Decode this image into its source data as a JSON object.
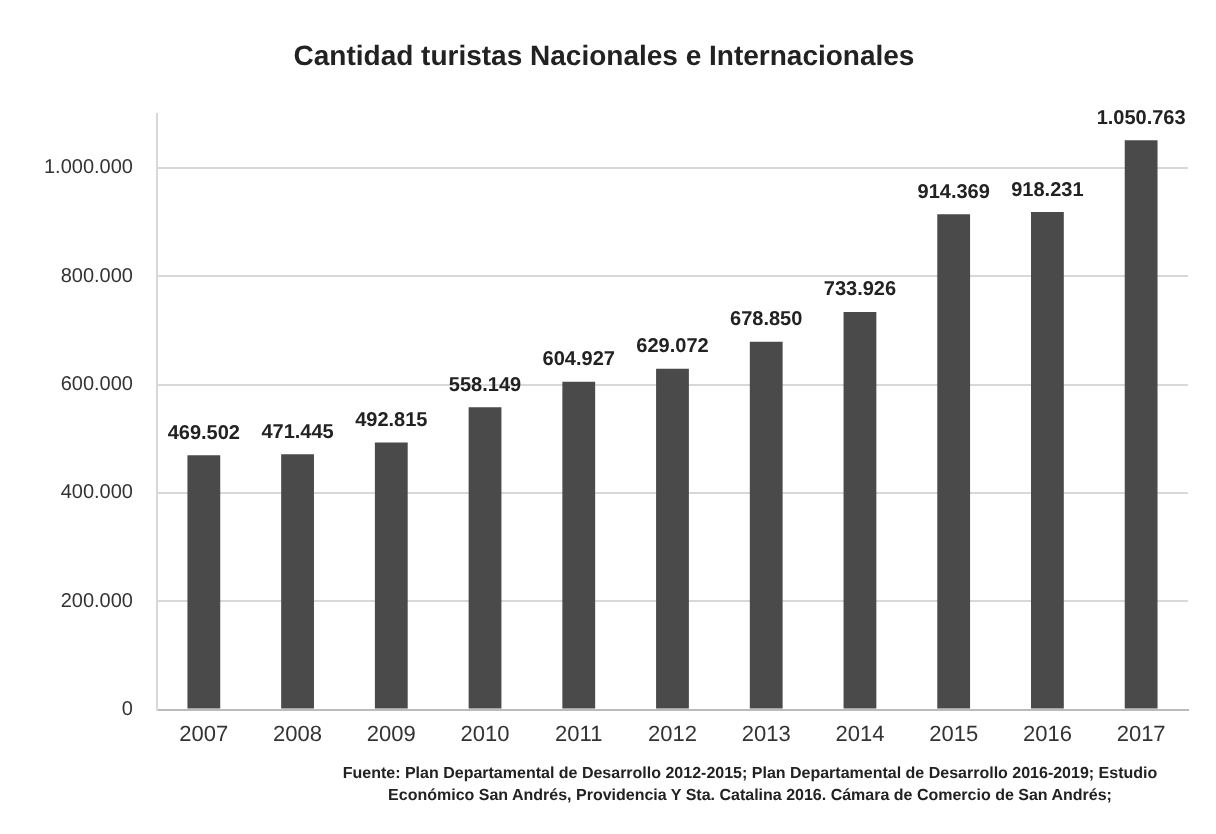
{
  "chart_data": {
    "type": "bar",
    "title": "Cantidad turistas Nacionales e Internacionales",
    "categories": [
      "2007",
      "2008",
      "2009",
      "2010",
      "2011",
      "2012",
      "2013",
      "2014",
      "2015",
      "2016",
      "2017"
    ],
    "values": [
      469502,
      471445,
      492815,
      558149,
      604927,
      629072,
      678850,
      733926,
      914369,
      918231,
      1050763
    ],
    "value_labels": [
      "469.502",
      "471.445",
      "492.815",
      "558.149",
      "604.927",
      "629.072",
      "678.850",
      "733.926",
      "914.369",
      "918.231",
      "1.050.763"
    ],
    "color": "#4a4a4a",
    "ylim": [
      0,
      1100000
    ],
    "yticks": [
      {
        "value": 0,
        "label": "0"
      },
      {
        "value": 200000,
        "label": "200.000"
      },
      {
        "value": 400000,
        "label": "400.000"
      },
      {
        "value": 600000,
        "label": "600.000"
      },
      {
        "value": 800000,
        "label": "800.000"
      },
      {
        "value": 1000000,
        "label": "1.000.000"
      }
    ],
    "grid": "y",
    "annotations": [
      "Fuente: Plan Departamental de Desarrollo 2012-2015; Plan Departamental de Desarrollo 2016-2019; Estudio Económico San Andrés, Providencia Y Sta. Catalina 2016. Cámara de Comercio de San Andrés;"
    ]
  }
}
